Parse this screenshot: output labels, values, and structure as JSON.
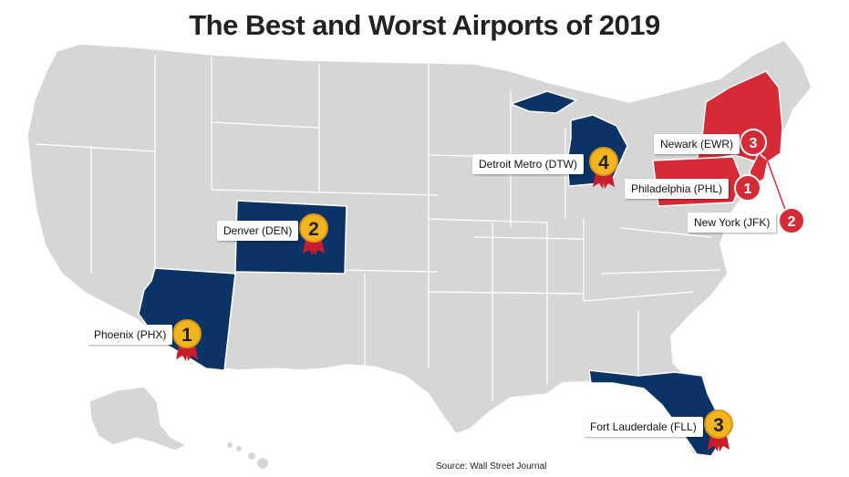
{
  "title": "The Best and Worst Airports of 2019",
  "source": "Source: Wall Street Journal",
  "colors": {
    "best": "#0b3366",
    "worst": "#d52b36",
    "land": "#d6d6d6",
    "border": "#ffffff",
    "medal": "#f2b51f",
    "ribbon": "#c81e2c"
  },
  "best": [
    {
      "rank": "1",
      "label": "Phoenix (PHX)",
      "state": "Arizona"
    },
    {
      "rank": "2",
      "label": "Denver (DEN)",
      "state": "Colorado"
    },
    {
      "rank": "3",
      "label": "Fort Lauderdale (FLL)",
      "state": "Florida"
    },
    {
      "rank": "4",
      "label": "Detroit Metro (DTW)",
      "state": "Michigan"
    }
  ],
  "worst": [
    {
      "rank": "1",
      "label": "Philadelphia (PHL)",
      "state": "Pennsylvania"
    },
    {
      "rank": "2",
      "label": "New York (JFK)",
      "state": "New York"
    },
    {
      "rank": "3",
      "label": "Newark (EWR)",
      "state": "New Jersey"
    }
  ]
}
